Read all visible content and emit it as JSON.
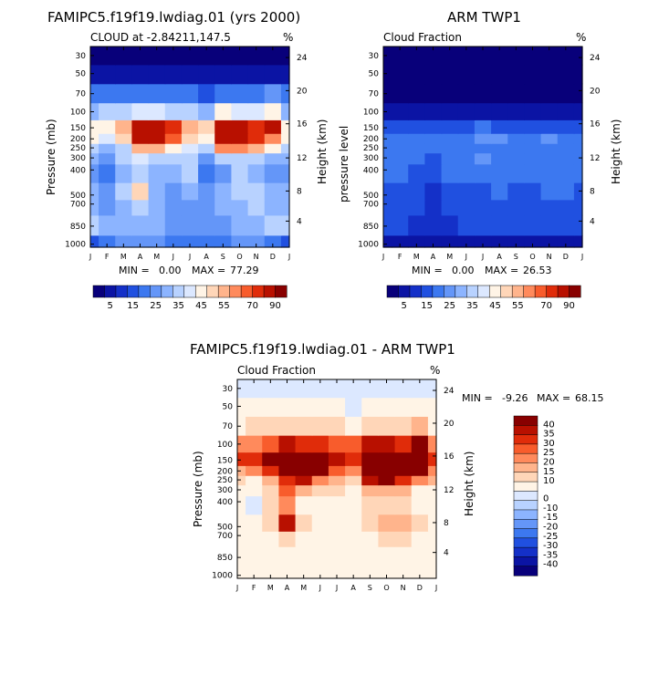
{
  "palette": {
    "cloud": [
      "#08007a",
      "#0b14a4",
      "#1430c8",
      "#2050e0",
      "#3c78f0",
      "#6496f8",
      "#8cb4ff",
      "#b8d2ff",
      "#dce8ff",
      "#fff4e6",
      "#ffd6b8",
      "#ffb48c",
      "#ff8a5c",
      "#f85c2c",
      "#e02c0a",
      "#b81000",
      "#880000"
    ],
    "diff": [
      "#08007a",
      "#0b14a4",
      "#1430c8",
      "#2050e0",
      "#3c78f0",
      "#6496f8",
      "#8cb4ff",
      "#b8d2ff",
      "#dce8ff",
      "#fff4e6",
      "#ffd6b8",
      "#ffb48c",
      "#ff8a5c",
      "#f85c2c",
      "#e02c0a",
      "#b81000",
      "#880000"
    ]
  },
  "pressure_ticks": [
    "30",
    "50",
    "70",
    "100",
    "150",
    "200",
    "250",
    "300",
    "400",
    "500",
    "700",
    "850",
    "1000"
  ],
  "height_ticks": [
    "24",
    "20",
    "16",
    "12",
    "8",
    "4"
  ],
  "month_ticks": [
    "J",
    "F",
    "M",
    "A",
    "M",
    "J",
    "J",
    "A",
    "S",
    "O",
    "N",
    "D",
    "J"
  ],
  "chart_data": [
    {
      "type": "heatmap",
      "title": "FAMIPC5.f19f19.lwdiag.01 (yrs 2000)",
      "subtitle": "CLOUD at -2.84211,147.5",
      "units": "%",
      "ylabel": "Pressure (mb)",
      "y2label": "Height (km)",
      "min_label": "MIN =",
      "min_value": "0.00",
      "max_label": "MAX =",
      "max_value": "77.29",
      "levels_mb": [
        1000,
        850,
        700,
        500,
        400,
        300,
        250,
        200,
        150,
        100,
        70,
        50,
        30
      ],
      "months": [
        "J",
        "F",
        "M",
        "A",
        "M",
        "J",
        "J",
        "A",
        "S",
        "O",
        "N",
        "D",
        "J"
      ],
      "values": [
        [
          14,
          18,
          20,
          22,
          20,
          18,
          16,
          15,
          18,
          20,
          22,
          18,
          14
        ],
        [
          30,
          28,
          26,
          28,
          26,
          24,
          22,
          20,
          24,
          26,
          28,
          30,
          30
        ],
        [
          28,
          24,
          26,
          30,
          26,
          22,
          24,
          22,
          26,
          28,
          30,
          28,
          28
        ],
        [
          26,
          22,
          30,
          45,
          28,
          24,
          26,
          22,
          28,
          30,
          34,
          26,
          26
        ],
        [
          22,
          16,
          28,
          34,
          26,
          28,
          30,
          18,
          24,
          30,
          28,
          22,
          22
        ],
        [
          26,
          22,
          30,
          36,
          34,
          30,
          34,
          24,
          34,
          34,
          32,
          26,
          26
        ],
        [
          34,
          28,
          34,
          50,
          54,
          40,
          36,
          32,
          56,
          58,
          50,
          40,
          34
        ],
        [
          40,
          38,
          48,
          72,
          72,
          62,
          48,
          44,
          76,
          74,
          66,
          56,
          40
        ],
        [
          42,
          44,
          54,
          72,
          72,
          66,
          52,
          46,
          74,
          72,
          68,
          72,
          42
        ],
        [
          28,
          30,
          32,
          38,
          36,
          34,
          30,
          28,
          40,
          38,
          36,
          42,
          28
        ],
        [
          16,
          17,
          17,
          18,
          17,
          17,
          15,
          14,
          18,
          18,
          17,
          22,
          16
        ],
        [
          3,
          3,
          3,
          3,
          3,
          3,
          3,
          3,
          3,
          3,
          3,
          3,
          3
        ],
        [
          1,
          1,
          1,
          1,
          1,
          1,
          1,
          1,
          1,
          1,
          1,
          1,
          1
        ]
      ],
      "colorbar_labels": [
        "5",
        "15",
        "25",
        "35",
        "45",
        "55",
        "70",
        "90"
      ]
    },
    {
      "type": "heatmap",
      "title": "ARM TWP1",
      "subtitle": "Cloud Fraction",
      "units": "%",
      "ylabel": "pressure level",
      "y2label": "Height (km)",
      "min_label": "MIN =",
      "min_value": "0.00",
      "max_label": "MAX =",
      "max_value": "26.53",
      "levels_mb": [
        1000,
        850,
        700,
        500,
        400,
        300,
        250,
        200,
        150,
        100,
        70,
        50,
        30
      ],
      "months": [
        "J",
        "F",
        "M",
        "A",
        "M",
        "J",
        "J",
        "A",
        "S",
        "O",
        "N",
        "D",
        "J"
      ],
      "values": [
        [
          4,
          4,
          4,
          4,
          4,
          4,
          4,
          4,
          4,
          4,
          4,
          4,
          4
        ],
        [
          12,
          10,
          8,
          6,
          8,
          10,
          10,
          12,
          10,
          10,
          10,
          10,
          12
        ],
        [
          12,
          12,
          10,
          8,
          12,
          12,
          12,
          14,
          12,
          12,
          14,
          14,
          12
        ],
        [
          14,
          14,
          12,
          8,
          14,
          14,
          14,
          16,
          14,
          14,
          16,
          16,
          14
        ],
        [
          16,
          16,
          14,
          10,
          16,
          16,
          16,
          16,
          16,
          16,
          16,
          16,
          16
        ],
        [
          16,
          16,
          16,
          14,
          16,
          18,
          20,
          16,
          18,
          18,
          16,
          18,
          16
        ],
        [
          16,
          16,
          16,
          16,
          18,
          18,
          16,
          16,
          18,
          16,
          16,
          16,
          16
        ],
        [
          18,
          18,
          18,
          18,
          18,
          18,
          20,
          20,
          18,
          18,
          20,
          18,
          18
        ],
        [
          12,
          14,
          12,
          12,
          14,
          14,
          16,
          14,
          14,
          12,
          14,
          14,
          12
        ],
        [
          3,
          3,
          3,
          3,
          3,
          3,
          3,
          3,
          3,
          3,
          3,
          3,
          3
        ],
        [
          1,
          1,
          1,
          1,
          1,
          1,
          1,
          1,
          1,
          1,
          1,
          1,
          1
        ],
        [
          0,
          0,
          0,
          0,
          0,
          0,
          0,
          0,
          0,
          0,
          0,
          0,
          0
        ],
        [
          0,
          0,
          0,
          0,
          0,
          0,
          0,
          0,
          0,
          0,
          0,
          0,
          0
        ]
      ],
      "colorbar_labels": [
        "5",
        "15",
        "25",
        "35",
        "45",
        "55",
        "70",
        "90"
      ]
    },
    {
      "type": "heatmap",
      "title": "FAMIPC5.f19f19.lwdiag.01 - ARM TWP1",
      "subtitle": "Cloud Fraction",
      "units": "%",
      "ylabel": "Pressure (mb)",
      "y2label": "Height (km)",
      "min_label": "MIN =",
      "min_value": "-9.26",
      "max_label": "MAX =",
      "max_value": "68.15",
      "levels_mb": [
        1000,
        850,
        700,
        500,
        400,
        300,
        250,
        200,
        150,
        100,
        70,
        50,
        30
      ],
      "months": [
        "J",
        "F",
        "M",
        "A",
        "M",
        "J",
        "J",
        "A",
        "S",
        "O",
        "N",
        "D",
        "J"
      ],
      "values": [
        [
          2,
          2,
          2,
          2,
          2,
          2,
          2,
          2,
          2,
          2,
          2,
          2,
          2
        ],
        [
          4,
          3,
          3,
          4,
          3,
          3,
          3,
          3,
          3,
          4,
          4,
          3,
          4
        ],
        [
          6,
          6,
          8,
          14,
          8,
          6,
          6,
          4,
          8,
          10,
          10,
          8,
          6
        ],
        [
          8,
          6,
          12,
          38,
          12,
          6,
          6,
          4,
          12,
          18,
          16,
          10,
          8
        ],
        [
          6,
          -6,
          10,
          24,
          8,
          6,
          8,
          4,
          10,
          14,
          12,
          8,
          6
        ],
        [
          8,
          4,
          12,
          26,
          18,
          10,
          12,
          6,
          16,
          16,
          16,
          8,
          8
        ],
        [
          10,
          8,
          16,
          34,
          36,
          22,
          16,
          12,
          38,
          42,
          34,
          24,
          18
        ],
        [
          18,
          20,
          30,
          54,
          54,
          44,
          28,
          24,
          58,
          56,
          50,
          40,
          22
        ],
        [
          30,
          32,
          42,
          60,
          58,
          52,
          36,
          32,
          60,
          60,
          54,
          58,
          30
        ],
        [
          22,
          24,
          28,
          36,
          34,
          32,
          28,
          26,
          38,
          36,
          34,
          42,
          24
        ],
        [
          8,
          10,
          10,
          12,
          11,
          11,
          10,
          8,
          12,
          12,
          12,
          18,
          8
        ],
        [
          2,
          2,
          2,
          2,
          2,
          2,
          2,
          -2,
          2,
          2,
          2,
          2,
          2
        ],
        [
          -4,
          -4,
          -4,
          -4,
          -4,
          -4,
          -4,
          -4,
          -4,
          -4,
          -4,
          -4,
          -4
        ]
      ],
      "colorbar_labels": [
        "40",
        "35",
        "30",
        "25",
        "20",
        "15",
        "10",
        "0",
        "-10",
        "-15",
        "-20",
        "-25",
        "-30",
        "-35",
        "-40"
      ]
    }
  ]
}
